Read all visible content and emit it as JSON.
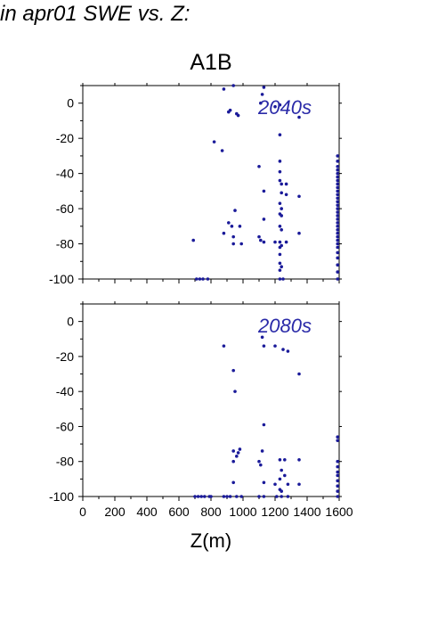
{
  "page": {
    "title": "in apr01 SWE vs. Z:"
  },
  "chart_data": {
    "type": "scatter",
    "title": "A1B",
    "xlabel": "Z(m)",
    "ylabel": "",
    "xlim": [
      0,
      1600
    ],
    "ylim": [
      -100,
      10
    ],
    "x_ticks": [
      0,
      200,
      400,
      600,
      800,
      1000,
      1200,
      1400,
      1600
    ],
    "y_ticks": [
      0,
      -20,
      -40,
      -60,
      -80,
      -100
    ],
    "marker_color": "#1a1a99",
    "grid": false,
    "panels": [
      {
        "label": "2040s",
        "points": [
          [
            880,
            8
          ],
          [
            940,
            10
          ],
          [
            1120,
            5
          ],
          [
            1130,
            9
          ],
          [
            1110,
            0
          ],
          [
            1200,
            -2
          ],
          [
            1230,
            -1
          ],
          [
            910,
            -5
          ],
          [
            920,
            -4
          ],
          [
            960,
            -6
          ],
          [
            970,
            -7
          ],
          [
            1350,
            -8
          ],
          [
            1230,
            -18
          ],
          [
            820,
            -22
          ],
          [
            870,
            -27
          ],
          [
            1100,
            -36
          ],
          [
            1230,
            -33
          ],
          [
            1230,
            -39
          ],
          [
            1230,
            -44
          ],
          [
            1240,
            -46
          ],
          [
            1270,
            -46
          ],
          [
            1130,
            -50
          ],
          [
            1240,
            -51
          ],
          [
            1270,
            -52
          ],
          [
            1350,
            -53
          ],
          [
            1230,
            -57
          ],
          [
            1240,
            -60
          ],
          [
            950,
            -61
          ],
          [
            1230,
            -63
          ],
          [
            1240,
            -64
          ],
          [
            1130,
            -66
          ],
          [
            910,
            -68
          ],
          [
            930,
            -70
          ],
          [
            980,
            -70
          ],
          [
            1230,
            -70
          ],
          [
            1240,
            -72
          ],
          [
            880,
            -74
          ],
          [
            1350,
            -74
          ],
          [
            940,
            -76
          ],
          [
            1100,
            -76
          ],
          [
            1110,
            -78
          ],
          [
            690,
            -78
          ],
          [
            1130,
            -79
          ],
          [
            1200,
            -79
          ],
          [
            1230,
            -79
          ],
          [
            1270,
            -79
          ],
          [
            940,
            -80
          ],
          [
            990,
            -80
          ],
          [
            1230,
            -82
          ],
          [
            1240,
            -81
          ],
          [
            1230,
            -86
          ],
          [
            1230,
            -91
          ],
          [
            1240,
            -93
          ],
          [
            1230,
            -95
          ],
          [
            710,
            -100
          ],
          [
            730,
            -100
          ],
          [
            750,
            -100
          ],
          [
            780,
            -100
          ],
          [
            1230,
            -100
          ],
          [
            1250,
            -100
          ],
          [
            1590,
            -30
          ],
          [
            1590,
            -33
          ],
          [
            1590,
            -36
          ],
          [
            1590,
            -38
          ],
          [
            1590,
            -40
          ],
          [
            1590,
            -42
          ],
          [
            1590,
            -44
          ],
          [
            1590,
            -46
          ],
          [
            1590,
            -48
          ],
          [
            1590,
            -50
          ],
          [
            1590,
            -52
          ],
          [
            1590,
            -54
          ],
          [
            1590,
            -56
          ],
          [
            1590,
            -58
          ],
          [
            1590,
            -60
          ],
          [
            1590,
            -62
          ],
          [
            1590,
            -64
          ],
          [
            1590,
            -66
          ],
          [
            1590,
            -68
          ],
          [
            1590,
            -70
          ],
          [
            1590,
            -72
          ],
          [
            1590,
            -74
          ],
          [
            1590,
            -76
          ],
          [
            1590,
            -78
          ],
          [
            1590,
            -80
          ],
          [
            1590,
            -82
          ],
          [
            1590,
            -85
          ],
          [
            1590,
            -88
          ],
          [
            1590,
            -92
          ],
          [
            1590,
            -96
          ],
          [
            1590,
            -100
          ]
        ]
      },
      {
        "label": "2080s",
        "points": [
          [
            1120,
            -9
          ],
          [
            880,
            -14
          ],
          [
            1130,
            -14
          ],
          [
            1200,
            -14
          ],
          [
            1250,
            -16
          ],
          [
            1280,
            -17
          ],
          [
            940,
            -28
          ],
          [
            1350,
            -30
          ],
          [
            950,
            -40
          ],
          [
            1130,
            -59
          ],
          [
            940,
            -74
          ],
          [
            1120,
            -74
          ],
          [
            970,
            -75
          ],
          [
            980,
            -73
          ],
          [
            960,
            -77
          ],
          [
            1230,
            -79
          ],
          [
            1260,
            -79
          ],
          [
            1350,
            -79
          ],
          [
            940,
            -80
          ],
          [
            1100,
            -80
          ],
          [
            1110,
            -82
          ],
          [
            1240,
            -85
          ],
          [
            1260,
            -88
          ],
          [
            940,
            -92
          ],
          [
            1130,
            -92
          ],
          [
            1200,
            -93
          ],
          [
            1230,
            -90
          ],
          [
            1280,
            -93
          ],
          [
            1350,
            -93
          ],
          [
            1230,
            -96
          ],
          [
            1240,
            -97
          ],
          [
            700,
            -100
          ],
          [
            720,
            -100
          ],
          [
            740,
            -100
          ],
          [
            760,
            -100
          ],
          [
            790,
            -100
          ],
          [
            800,
            -100
          ],
          [
            880,
            -100
          ],
          [
            900,
            -100
          ],
          [
            920,
            -100
          ],
          [
            960,
            -100
          ],
          [
            990,
            -100
          ],
          [
            1100,
            -100
          ],
          [
            1130,
            -100
          ],
          [
            1210,
            -100
          ],
          [
            1240,
            -100
          ],
          [
            1280,
            -100
          ],
          [
            1590,
            -66
          ],
          [
            1590,
            -68
          ],
          [
            1590,
            -80
          ],
          [
            1590,
            -83
          ],
          [
            1590,
            -86
          ],
          [
            1590,
            -88
          ],
          [
            1590,
            -91
          ],
          [
            1590,
            -94
          ],
          [
            1590,
            -97
          ],
          [
            1590,
            -100
          ]
        ]
      }
    ]
  }
}
